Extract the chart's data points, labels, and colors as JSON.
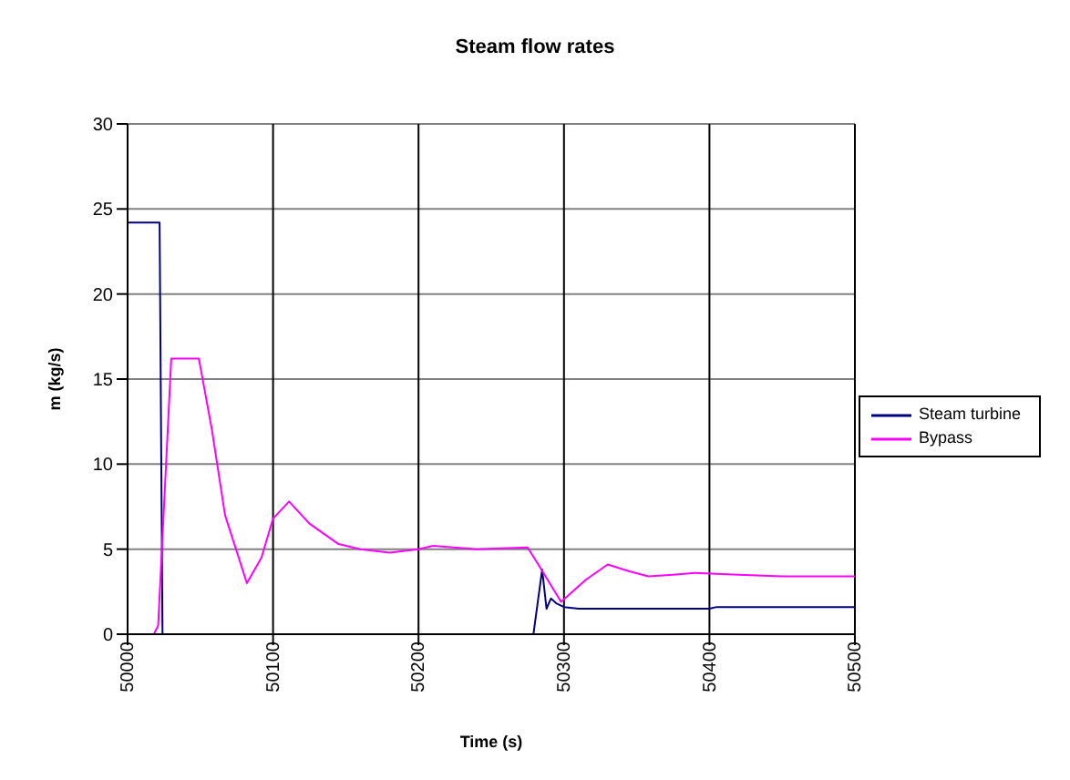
{
  "chart_data": {
    "type": "line",
    "title": "Steam flow rates",
    "xlabel": "Time (s)",
    "ylabel": "m (kg/s)",
    "xlim": [
      50000,
      50500
    ],
    "xticks": [
      50000,
      50100,
      50200,
      50300,
      50400,
      50500
    ],
    "ylim": [
      0,
      30
    ],
    "yticks": [
      0,
      5,
      10,
      15,
      20,
      25,
      30
    ],
    "grid": true,
    "legend": "right",
    "marker": "none",
    "line_style": "solid",
    "series": [
      {
        "name": "Steam turbine",
        "color": "#000080",
        "x": [
          50000,
          50022,
          50024,
          50279,
          50285,
          50288,
          50291,
          50295,
          50300,
          50310,
          50400,
          50405,
          50500
        ],
        "values": [
          24.2,
          24.2,
          0,
          0,
          3.8,
          1.5,
          2.1,
          1.8,
          1.6,
          1.5,
          1.5,
          1.6,
          1.6
        ]
      },
      {
        "name": "Bypass",
        "color": "#ff00ff",
        "x": [
          50000,
          50018,
          50021,
          50030,
          50049,
          50058,
          50067,
          50082,
          50092,
          50100,
          50111,
          50125,
          50145,
          50160,
          50180,
          50200,
          50210,
          50240,
          50275,
          50283,
          50298,
          50315,
          50330,
          50345,
          50358,
          50375,
          50390,
          50420,
          50450,
          50500
        ],
        "values": [
          0,
          0,
          0.5,
          16.2,
          16.2,
          12,
          7,
          3,
          4.5,
          6.8,
          7.8,
          6.5,
          5.3,
          5,
          4.8,
          5,
          5.2,
          5,
          5.1,
          4,
          1.9,
          3.2,
          4.1,
          3.7,
          3.4,
          3.5,
          3.6,
          3.5,
          3.4,
          3.4
        ]
      }
    ]
  }
}
